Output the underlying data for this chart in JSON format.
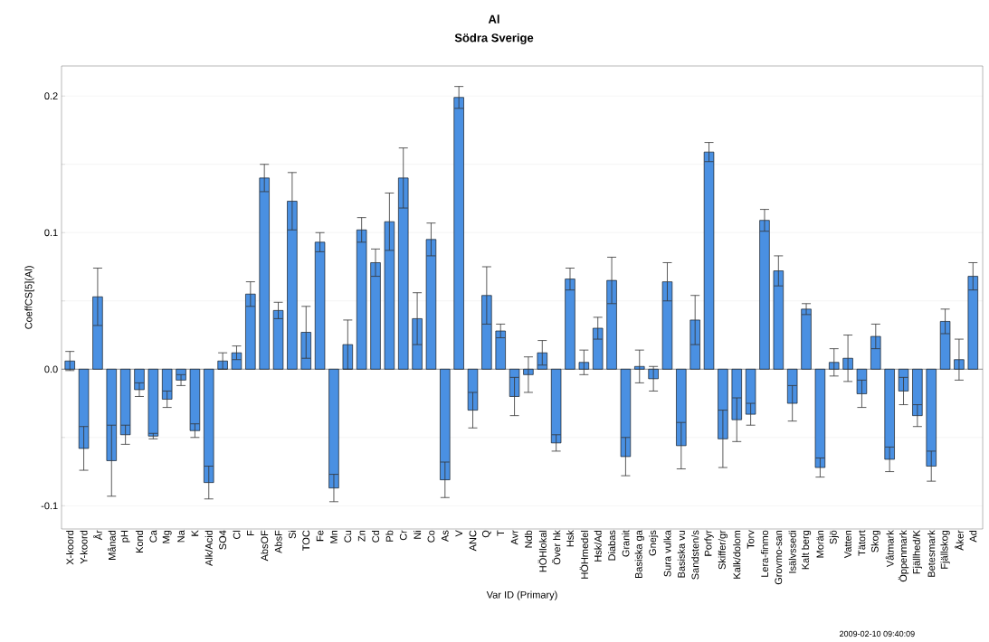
{
  "chart_data": {
    "type": "bar",
    "title": "Al",
    "subtitle": "Södra Sverige",
    "xlabel": "Var ID (Primary)",
    "ylabel": "CoeffCS[5](Al)",
    "annotations": [
      "2009-02-10 09:40:09"
    ],
    "categories": [
      "X-koord",
      "Y-koord",
      "År",
      "Månad",
      "pH",
      "Kond",
      "Ca",
      "Mg",
      "Na",
      "K",
      "Alk/Acid",
      "SO4",
      "Cl",
      "F",
      "AbsOF",
      "AbsF",
      "Si",
      "TOC",
      "Fe",
      "Mn",
      "Cu",
      "Zn",
      "Cd",
      "Pb",
      "Cr",
      "Ni",
      "Co",
      "As",
      "V",
      "ANC",
      "Q",
      "T",
      "Avr",
      "Ndb",
      "HÖHlokal",
      "Över hk",
      "Hsk",
      "HÖHmedel",
      "Hsk/Ad",
      "Diabas",
      "Granit",
      "Basiska ga",
      "Gnejs",
      "Sura vulka",
      "Basiska vu",
      "Sandsten/s",
      "Porfyr",
      "Skiffer/gr",
      "Kalk/dolom",
      "Torv",
      "Lera-finmo",
      "Grovmo-san",
      "Isälvssedi",
      "Kalt berg",
      "Morän",
      "Sjö",
      "Vatten",
      "Tätort",
      "Skog",
      "Våtmark",
      "Öppenmark",
      "Fjällhed/K",
      "Betesmark",
      "Fjällskog",
      "Åker",
      "Ad"
    ],
    "values": [
      0.006,
      -0.058,
      0.053,
      -0.067,
      -0.048,
      -0.015,
      -0.049,
      -0.022,
      -0.008,
      -0.045,
      -0.083,
      0.006,
      0.012,
      0.055,
      0.14,
      0.043,
      0.123,
      0.027,
      0.093,
      -0.087,
      0.018,
      0.102,
      0.078,
      0.108,
      0.14,
      0.037,
      0.095,
      -0.081,
      0.199,
      -0.03,
      0.054,
      0.028,
      -0.02,
      -0.004,
      0.012,
      -0.054,
      0.066,
      0.005,
      0.03,
      0.065,
      -0.064,
      0.002,
      -0.007,
      0.064,
      -0.056,
      0.036,
      0.159,
      -0.051,
      -0.037,
      -0.033,
      0.109,
      0.072,
      -0.025,
      0.044,
      -0.072,
      0.005,
      0.008,
      -0.018,
      0.024,
      -0.066,
      -0.016,
      -0.034,
      -0.071,
      0.035,
      0.007,
      0.068
    ],
    "errors": [
      0.007,
      0.016,
      0.021,
      0.026,
      0.007,
      0.005,
      0.002,
      0.006,
      0.004,
      0.005,
      0.012,
      0.006,
      0.005,
      0.009,
      0.01,
      0.006,
      0.021,
      0.019,
      0.007,
      0.01,
      0.018,
      0.009,
      0.01,
      0.021,
      0.022,
      0.019,
      0.012,
      0.013,
      0.008,
      0.013,
      0.021,
      0.005,
      0.014,
      0.013,
      0.009,
      0.006,
      0.008,
      0.009,
      0.008,
      0.017,
      0.014,
      0.012,
      0.009,
      0.014,
      0.017,
      0.018,
      0.007,
      0.021,
      0.016,
      0.008,
      0.008,
      0.011,
      0.013,
      0.004,
      0.007,
      0.01,
      0.017,
      0.01,
      0.009,
      0.009,
      0.01,
      0.008,
      0.011,
      0.009,
      0.015,
      0.01
    ],
    "color": "#4a90e2",
    "ylim": [
      -0.117,
      0.222
    ],
    "yticks": [
      {
        "value": -0.1,
        "label": "-0.1"
      },
      {
        "value": -0.05,
        "label": null
      },
      {
        "value": 0,
        "label": "0.0"
      },
      {
        "value": 0.05,
        "label": null
      },
      {
        "value": 0.1,
        "label": "0.1"
      },
      {
        "value": 0.15,
        "label": null
      },
      {
        "value": 0.2,
        "label": "0.2"
      }
    ],
    "grid": true
  }
}
